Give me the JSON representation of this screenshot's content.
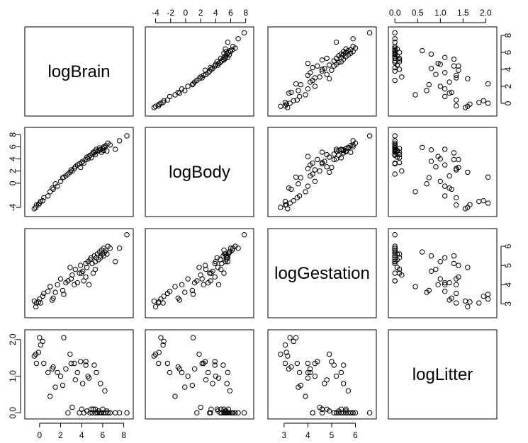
{
  "chart_data": {
    "type": "scatter",
    "kind": "scatterplot-matrix",
    "variables": [
      {
        "name": "logBrain",
        "range": [
          -1.0,
          8.5
        ],
        "ticks": [
          0,
          2,
          4,
          6,
          8
        ]
      },
      {
        "name": "logBody",
        "range": [
          -4.8,
          8.5
        ],
        "ticks": [
          -4,
          -2,
          0,
          2,
          4,
          6,
          8
        ]
      },
      {
        "name": "logGestation",
        "range": [
          2.5,
          6.7
        ],
        "ticks": [
          3,
          4,
          5,
          6
        ]
      },
      {
        "name": "logLitter",
        "range": [
          -0.05,
          2.15
        ],
        "ticks": [
          0.0,
          0.5,
          1.0,
          1.5,
          2.0
        ]
      }
    ],
    "tick_labels": {
      "top_logBody": [
        "-4",
        "-2",
        "0",
        "2",
        "4",
        "6",
        "8"
      ],
      "top_logLitter": [
        "0.0",
        "0.5",
        "1.0",
        "1.5",
        "2.0"
      ],
      "right_logBrain": [
        "0",
        "2",
        "4",
        "6",
        "8"
      ],
      "right_logGestation": [
        "3",
        "4",
        "5",
        "6"
      ],
      "left_logBody": [
        "-4",
        "0",
        "2",
        "4",
        "6",
        "8"
      ],
      "left_logLitter": [
        "0.0",
        "1.0",
        "2.0"
      ],
      "bottom_logBrain": [
        "0",
        "2",
        "4",
        "6",
        "8"
      ],
      "bottom_logGestation": [
        "3",
        "4",
        "5",
        "6"
      ]
    },
    "observations": [
      [
        -0.35,
        -4.0,
        2.85,
        1.6
      ],
      [
        -0.1,
        -3.55,
        3.1,
        1.65
      ],
      [
        -0.5,
        -4.2,
        3.15,
        1.55
      ],
      [
        0.1,
        -3.0,
        3.05,
        1.85
      ],
      [
        0.3,
        -2.9,
        3.4,
        1.95
      ],
      [
        0.4,
        -2.4,
        3.55,
        1.35
      ],
      [
        0.0,
        -3.3,
        3.25,
        2.05
      ],
      [
        -0.3,
        -3.6,
        3.05,
        1.35
      ],
      [
        0.8,
        -2.1,
        3.65,
        1.1
      ],
      [
        1.0,
        -1.4,
        3.9,
        0.45
      ],
      [
        1.3,
        -1.0,
        3.3,
        1.25
      ],
      [
        1.7,
        -0.5,
        4.0,
        1.1
      ],
      [
        1.5,
        -0.1,
        3.6,
        0.7
      ],
      [
        2.0,
        0.3,
        4.3,
        1.0
      ],
      [
        2.2,
        0.9,
        3.7,
        0.75
      ],
      [
        2.5,
        1.2,
        4.1,
        1.2
      ],
      [
        2.7,
        1.5,
        4.2,
        0.0
      ],
      [
        2.9,
        1.8,
        4.9,
        1.6
      ],
      [
        3.1,
        2.0,
        4.5,
        0.15
      ],
      [
        3.3,
        2.4,
        4.0,
        1.35
      ],
      [
        3.4,
        2.7,
        4.8,
        0.9
      ],
      [
        3.6,
        3.0,
        4.1,
        1.1
      ],
      [
        3.8,
        3.2,
        4.6,
        0.0
      ],
      [
        3.9,
        2.6,
        5.0,
        1.4
      ],
      [
        4.1,
        3.6,
        4.7,
        0.8
      ],
      [
        4.2,
        3.3,
        4.2,
        0.0
      ],
      [
        4.4,
        3.9,
        5.1,
        1.3
      ],
      [
        4.5,
        4.3,
        4.9,
        0.05
      ],
      [
        4.6,
        4.0,
        5.2,
        1.0
      ],
      [
        4.7,
        4.4,
        4.0,
        0.95
      ],
      [
        4.8,
        4.6,
        5.3,
        0.0
      ],
      [
        4.9,
        4.2,
        5.4,
        0.1
      ],
      [
        5.0,
        4.8,
        5.1,
        0.0
      ],
      [
        5.1,
        5.1,
        4.6,
        0.1
      ],
      [
        5.2,
        5.0,
        5.5,
        1.3
      ],
      [
        5.3,
        5.3,
        5.2,
        0.0
      ],
      [
        5.4,
        5.6,
        5.4,
        1.1
      ],
      [
        5.5,
        5.2,
        5.6,
        0.0
      ],
      [
        5.6,
        5.4,
        5.3,
        0.05
      ],
      [
        5.7,
        5.8,
        5.7,
        0.0
      ],
      [
        5.8,
        5.5,
        5.5,
        0.8
      ],
      [
        5.9,
        5.1,
        5.8,
        0.0
      ],
      [
        6.0,
        5.7,
        5.6,
        0.1
      ],
      [
        6.1,
        6.0,
        5.9,
        0.0
      ],
      [
        6.2,
        5.9,
        5.7,
        0.6
      ],
      [
        6.3,
        6.2,
        5.8,
        0.0
      ],
      [
        6.4,
        5.3,
        5.6,
        0.05
      ],
      [
        6.5,
        6.6,
        6.0,
        0.0
      ],
      [
        6.7,
        6.3,
        5.9,
        0.0
      ],
      [
        7.2,
        5.6,
        5.2,
        0.0
      ],
      [
        7.6,
        7.0,
        5.9,
        0.0
      ],
      [
        8.3,
        7.8,
        6.6,
        0.0
      ],
      [
        2.3,
        1.0,
        3.5,
        2.05
      ],
      [
        1.2,
        -0.8,
        3.2,
        1.2
      ],
      [
        3.0,
        2.2,
        4.3,
        1.35
      ],
      [
        4.0,
        3.4,
        4.6,
        0.1
      ],
      [
        5.8,
        5.5,
        5.4,
        0.0
      ],
      [
        6.1,
        5.4,
        5.5,
        0.0
      ],
      [
        5.3,
        4.7,
        4.8,
        0.1
      ],
      [
        4.4,
        3.9,
        4.4,
        1.4
      ]
    ]
  }
}
